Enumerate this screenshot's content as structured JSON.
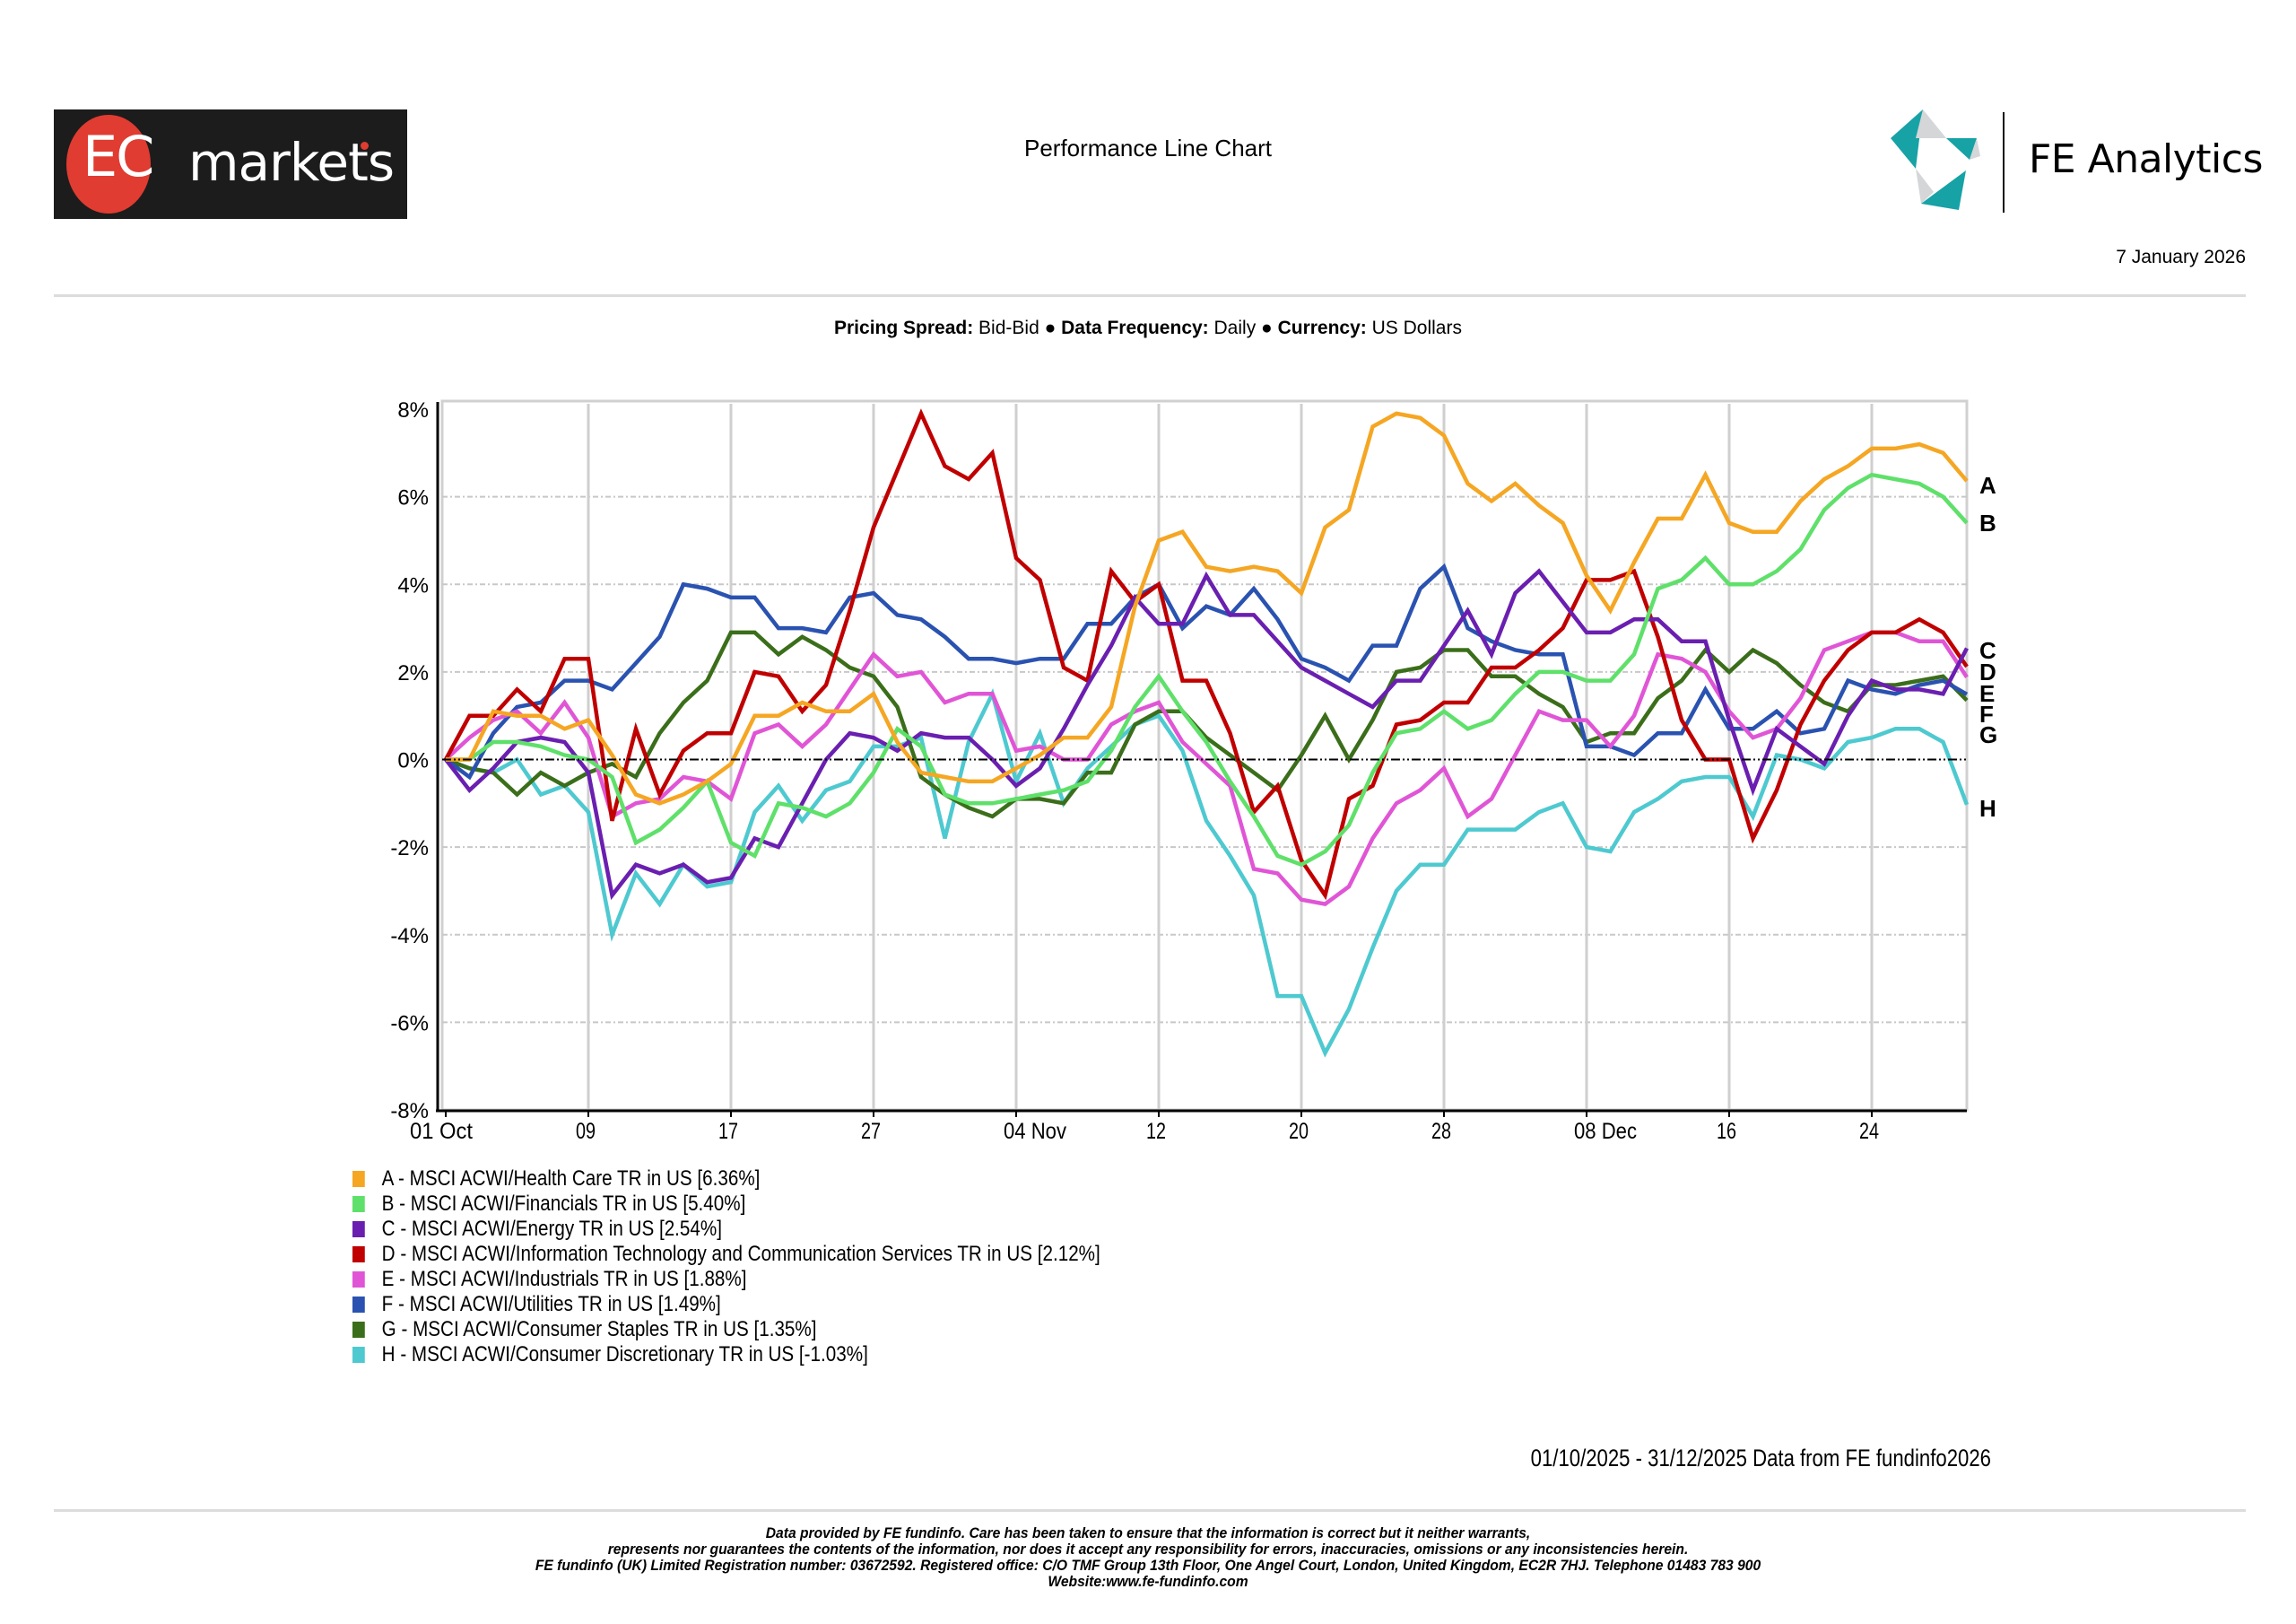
{
  "header": {
    "brand_logo_text_left": "EC",
    "brand_logo_text_right": "markets",
    "report_title": "Performance Line Chart",
    "provider_name": "FE Analytics",
    "report_date": "7 January 2026"
  },
  "params": {
    "pricing_spread_label": "Pricing Spread:",
    "pricing_spread_value": "Bid-Bid",
    "frequency_label": "Data Frequency:",
    "frequency_value": "Daily",
    "currency_label": "Currency:",
    "currency_value": "US Dollars",
    "separator": "●"
  },
  "chart_data": {
    "type": "line",
    "title": "Performance Line Chart",
    "xlabel": "",
    "ylabel": "",
    "ylim": [
      -8,
      8
    ],
    "yticks": [
      8,
      6,
      4,
      2,
      0,
      -2,
      -4,
      -6,
      -8
    ],
    "ytick_labels": [
      "8%",
      "6%",
      "4%",
      "2%",
      "0%",
      "-2%",
      "-4%",
      "-6%",
      "-8%"
    ],
    "x_points": 65,
    "xticks": [
      {
        "index": 0,
        "label": "01 Oct"
      },
      {
        "index": 6,
        "label": "09"
      },
      {
        "index": 12,
        "label": "17"
      },
      {
        "index": 18,
        "label": "27"
      },
      {
        "index": 24,
        "label": "04 Nov"
      },
      {
        "index": 30,
        "label": "12"
      },
      {
        "index": 36,
        "label": "20"
      },
      {
        "index": 42,
        "label": "28"
      },
      {
        "index": 48,
        "label": "08 Dec"
      },
      {
        "index": 54,
        "label": "16"
      },
      {
        "index": 60,
        "label": "24"
      }
    ],
    "grid": true,
    "zero_line": true,
    "series": [
      {
        "key": "A",
        "name": "MSCI ACWI/Health Care TR in US",
        "final": "6.36%",
        "color": "#f5a623",
        "values": [
          0,
          0,
          1.1,
          1.0,
          1.0,
          0.7,
          0.9,
          0.1,
          -0.8,
          -1.0,
          -0.8,
          -0.5,
          -0.1,
          1.0,
          1.0,
          1.3,
          1.1,
          1.1,
          1.5,
          0.4,
          -0.3,
          -0.4,
          -0.5,
          -0.5,
          -0.2,
          0.1,
          0.5,
          0.5,
          1.2,
          3.5,
          5.0,
          5.2,
          4.4,
          4.3,
          4.4,
          4.3,
          3.8,
          5.3,
          5.7,
          7.6,
          7.9,
          7.8,
          7.4,
          6.3,
          5.9,
          6.3,
          5.8,
          5.4,
          4.2,
          3.4,
          4.5,
          5.5,
          5.5,
          6.5,
          5.4,
          5.2,
          5.2,
          5.9,
          6.4,
          6.7,
          7.1,
          7.1,
          7.2,
          7.0,
          6.36
        ]
      },
      {
        "key": "B",
        "name": "MSCI ACWI/Financials TR in US",
        "final": "5.40%",
        "color": "#5fe06a",
        "values": [
          0,
          0,
          0.4,
          0.4,
          0.3,
          0.1,
          0.0,
          -0.4,
          -1.9,
          -1.6,
          -1.1,
          -0.5,
          -1.9,
          -2.2,
          -1.0,
          -1.1,
          -1.3,
          -1.0,
          -0.3,
          0.7,
          0.3,
          -0.8,
          -1.0,
          -1.0,
          -0.9,
          -0.8,
          -0.7,
          -0.5,
          0.2,
          1.2,
          1.9,
          1.1,
          0.4,
          -0.5,
          -1.3,
          -2.2,
          -2.4,
          -2.1,
          -1.5,
          -0.3,
          0.6,
          0.7,
          1.1,
          0.7,
          0.9,
          1.5,
          2.0,
          2.0,
          1.8,
          1.8,
          2.4,
          3.9,
          4.1,
          4.6,
          4.0,
          4.0,
          4.3,
          4.8,
          5.7,
          6.2,
          6.5,
          6.4,
          6.3,
          6.0,
          5.4
        ]
      },
      {
        "key": "C",
        "name": "MSCI ACWI/Energy TR in US",
        "final": "2.54%",
        "color": "#6a1fb0",
        "values": [
          0,
          -0.7,
          -0.2,
          0.4,
          0.5,
          0.4,
          -0.3,
          -3.1,
          -2.4,
          -2.6,
          -2.4,
          -2.8,
          -2.7,
          -1.8,
          -2.0,
          -1.0,
          0.0,
          0.6,
          0.5,
          0.2,
          0.6,
          0.5,
          0.5,
          0.0,
          -0.6,
          -0.2,
          0.7,
          1.7,
          2.6,
          3.7,
          3.1,
          3.1,
          4.2,
          3.3,
          3.3,
          2.7,
          2.1,
          1.8,
          1.5,
          1.2,
          1.8,
          1.8,
          2.6,
          3.4,
          2.4,
          3.8,
          4.3,
          3.6,
          2.9,
          2.9,
          3.2,
          3.2,
          2.7,
          2.7,
          0.9,
          -0.7,
          0.7,
          0.3,
          -0.1,
          1.0,
          1.8,
          1.6,
          1.6,
          1.5,
          2.54
        ]
      },
      {
        "key": "D",
        "name": "MSCI ACWI/Information Technology and Communication Services TR in US",
        "final": "2.12%",
        "color": "#c00000",
        "values": [
          0,
          1.0,
          1.0,
          1.6,
          1.1,
          2.3,
          2.3,
          -1.4,
          0.7,
          -0.8,
          0.2,
          0.6,
          0.6,
          2.0,
          1.9,
          1.1,
          1.7,
          3.4,
          5.3,
          6.6,
          7.9,
          6.7,
          6.4,
          7.0,
          4.6,
          4.1,
          2.1,
          1.8,
          4.3,
          3.6,
          4.0,
          1.8,
          1.8,
          0.6,
          -1.2,
          -0.6,
          -2.3,
          -3.1,
          -0.9,
          -0.6,
          0.8,
          0.9,
          1.3,
          1.3,
          2.1,
          2.1,
          2.5,
          3.0,
          4.1,
          4.1,
          4.3,
          2.8,
          0.9,
          0.0,
          0.0,
          -1.8,
          -0.7,
          0.8,
          1.8,
          2.5,
          2.9,
          2.9,
          3.2,
          2.9,
          2.12
        ]
      },
      {
        "key": "E",
        "name": "MSCI ACWI/Industrials TR in US",
        "final": "1.88%",
        "color": "#e055d6",
        "values": [
          0,
          0.5,
          0.9,
          1.1,
          0.6,
          1.3,
          0.5,
          -1.3,
          -1.0,
          -0.9,
          -0.4,
          -0.5,
          -0.9,
          0.6,
          0.8,
          0.3,
          0.8,
          1.6,
          2.4,
          1.9,
          2.0,
          1.3,
          1.5,
          1.5,
          0.2,
          0.3,
          0.0,
          0.0,
          0.8,
          1.1,
          1.3,
          0.4,
          -0.1,
          -0.6,
          -2.5,
          -2.6,
          -3.2,
          -3.3,
          -2.9,
          -1.8,
          -1.0,
          -0.7,
          -0.2,
          -1.3,
          -0.9,
          0.1,
          1.1,
          0.9,
          0.9,
          0.3,
          1.0,
          2.4,
          2.3,
          2.0,
          1.1,
          0.5,
          0.7,
          1.4,
          2.5,
          2.7,
          2.9,
          2.9,
          2.7,
          2.7,
          1.88
        ]
      },
      {
        "key": "F",
        "name": "MSCI ACWI/Utilities TR in US",
        "final": "1.49%",
        "color": "#2a52b0",
        "values": [
          0,
          -0.4,
          0.6,
          1.2,
          1.3,
          1.8,
          1.8,
          1.6,
          2.2,
          2.8,
          4.0,
          3.9,
          3.7,
          3.7,
          3.0,
          3.0,
          2.9,
          3.7,
          3.8,
          3.3,
          3.2,
          2.8,
          2.3,
          2.3,
          2.2,
          2.3,
          2.3,
          3.1,
          3.1,
          3.7,
          4.0,
          3.0,
          3.5,
          3.3,
          3.9,
          3.2,
          2.3,
          2.1,
          1.8,
          2.6,
          2.6,
          3.9,
          4.4,
          3.0,
          2.7,
          2.5,
          2.4,
          2.4,
          0.3,
          0.3,
          0.1,
          0.6,
          0.6,
          1.6,
          0.7,
          0.7,
          1.1,
          0.6,
          0.7,
          1.8,
          1.6,
          1.5,
          1.7,
          1.8,
          1.49
        ]
      },
      {
        "key": "G",
        "name": "MSCI ACWI/Consumer Staples TR in US",
        "final": "1.35%",
        "color": "#3b6e1a",
        "values": [
          0,
          -0.2,
          -0.3,
          -0.8,
          -0.3,
          -0.6,
          -0.3,
          -0.1,
          -0.4,
          0.6,
          1.3,
          1.8,
          2.9,
          2.9,
          2.4,
          2.8,
          2.5,
          2.1,
          1.9,
          1.2,
          -0.4,
          -0.8,
          -1.1,
          -1.3,
          -0.9,
          -0.9,
          -1.0,
          -0.3,
          -0.3,
          0.8,
          1.1,
          1.1,
          0.5,
          0.1,
          -0.3,
          -0.7,
          0.1,
          1.0,
          0.0,
          0.9,
          2.0,
          2.1,
          2.5,
          2.5,
          1.9,
          1.9,
          1.5,
          1.2,
          0.4,
          0.6,
          0.6,
          1.4,
          1.8,
          2.5,
          2.0,
          2.5,
          2.2,
          1.7,
          1.3,
          1.1,
          1.7,
          1.7,
          1.8,
          1.9,
          1.35
        ]
      },
      {
        "key": "H",
        "name": "MSCI ACWI/Consumer Discretionary TR in US",
        "final": "-1.03%",
        "color": "#4ec9d0",
        "values": [
          0,
          -0.2,
          -0.3,
          0.0,
          -0.8,
          -0.6,
          -1.2,
          -4.0,
          -2.6,
          -3.3,
          -2.4,
          -2.9,
          -2.8,
          -1.2,
          -0.6,
          -1.4,
          -0.7,
          -0.5,
          0.3,
          0.3,
          0.5,
          -1.8,
          0.4,
          1.5,
          -0.5,
          0.6,
          -1.0,
          -0.2,
          0.3,
          0.8,
          1.0,
          0.2,
          -1.4,
          -2.2,
          -3.1,
          -5.4,
          -5.4,
          -6.7,
          -5.7,
          -4.3,
          -3.0,
          -2.4,
          -2.4,
          -1.6,
          -1.6,
          -1.6,
          -1.2,
          -1.0,
          -2.0,
          -2.1,
          -1.2,
          -0.9,
          -0.5,
          -0.4,
          -0.4,
          -1.3,
          0.1,
          0.0,
          -0.2,
          0.4,
          0.5,
          0.7,
          0.7,
          0.4,
          -1.03
        ]
      }
    ]
  },
  "legend": [
    {
      "label": "A - MSCI ACWI/Health Care TR in US [6.36%]"
    },
    {
      "label": "B - MSCI ACWI/Financials TR in US [5.40%]"
    },
    {
      "label": "C - MSCI ACWI/Energy TR in US [2.54%]"
    },
    {
      "label": "D - MSCI ACWI/Information Technology and Communication Services TR in US [2.12%]"
    },
    {
      "label": "E - MSCI ACWI/Industrials TR in US [1.88%]"
    },
    {
      "label": "F - MSCI ACWI/Utilities TR in US [1.49%]"
    },
    {
      "label": "G - MSCI ACWI/Consumer Staples TR in US [1.35%]"
    },
    {
      "label": "H - MSCI ACWI/Consumer Discretionary TR in US [-1.03%]"
    }
  ],
  "end_labels": [
    "A",
    "B",
    "C",
    "D",
    "E",
    "F",
    "G",
    "H"
  ],
  "footer": {
    "date_range": "01/10/2025 - 31/12/2025 Data from FE fundinfo2026",
    "disclaimer_lines": [
      "Data provided by FE fundinfo. Care has been taken to ensure that the information is correct but it neither warrants,",
      "represents nor guarantees the contents of the information, nor does it accept any responsibility for errors, inaccuracies, omissions or any inconsistencies herein.",
      "FE fundinfo (UK) Limited Registration number: 03672592. Registered office: C/O TMF Group 13th Floor, One Angel Court, London, United Kingdom, EC2R 7HJ. Telephone 01483 783 900",
      "Website:www.fe-fundinfo.com"
    ]
  }
}
